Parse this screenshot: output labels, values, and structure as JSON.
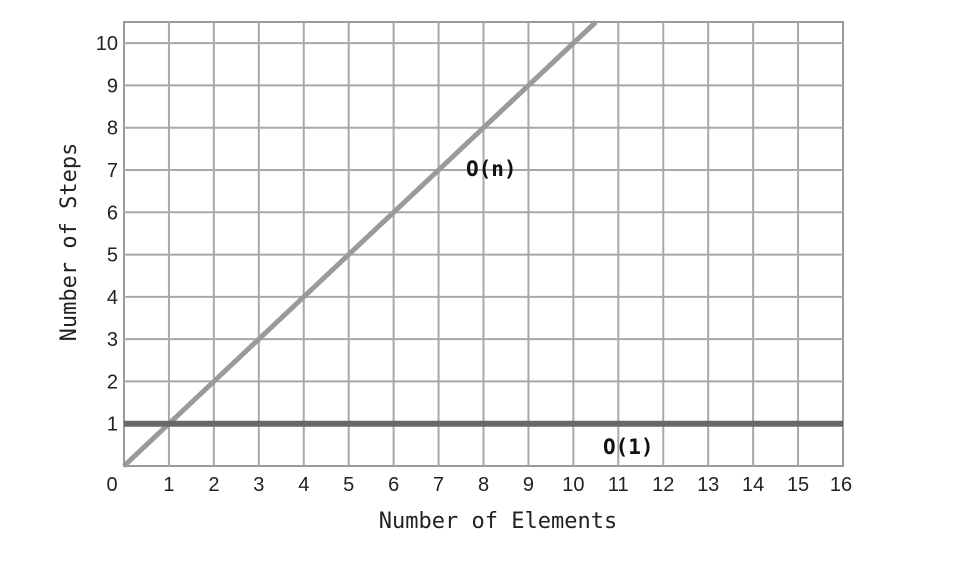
{
  "chart_data": {
    "type": "line",
    "title": "",
    "xlabel": "Number of Elements",
    "ylabel": "Number of Steps",
    "xlim": [
      0,
      16
    ],
    "ylim": [
      0,
      10.5
    ],
    "x_ticks": [
      "0",
      "1",
      "2",
      "3",
      "4",
      "5",
      "6",
      "7",
      "8",
      "9",
      "10",
      "11",
      "12",
      "13",
      "14",
      "15",
      "16"
    ],
    "y_ticks": [
      "1",
      "2",
      "3",
      "4",
      "5",
      "6",
      "7",
      "8",
      "9",
      "10"
    ],
    "grid": true,
    "legend": "none",
    "series": [
      {
        "name": "O(n)",
        "x": [
          0,
          10.5
        ],
        "y": [
          0,
          10.5
        ],
        "color": "#9a9a9a"
      },
      {
        "name": "O(1)",
        "x": [
          0,
          16
        ],
        "y": [
          1,
          1
        ],
        "color": "#686868"
      }
    ]
  }
}
